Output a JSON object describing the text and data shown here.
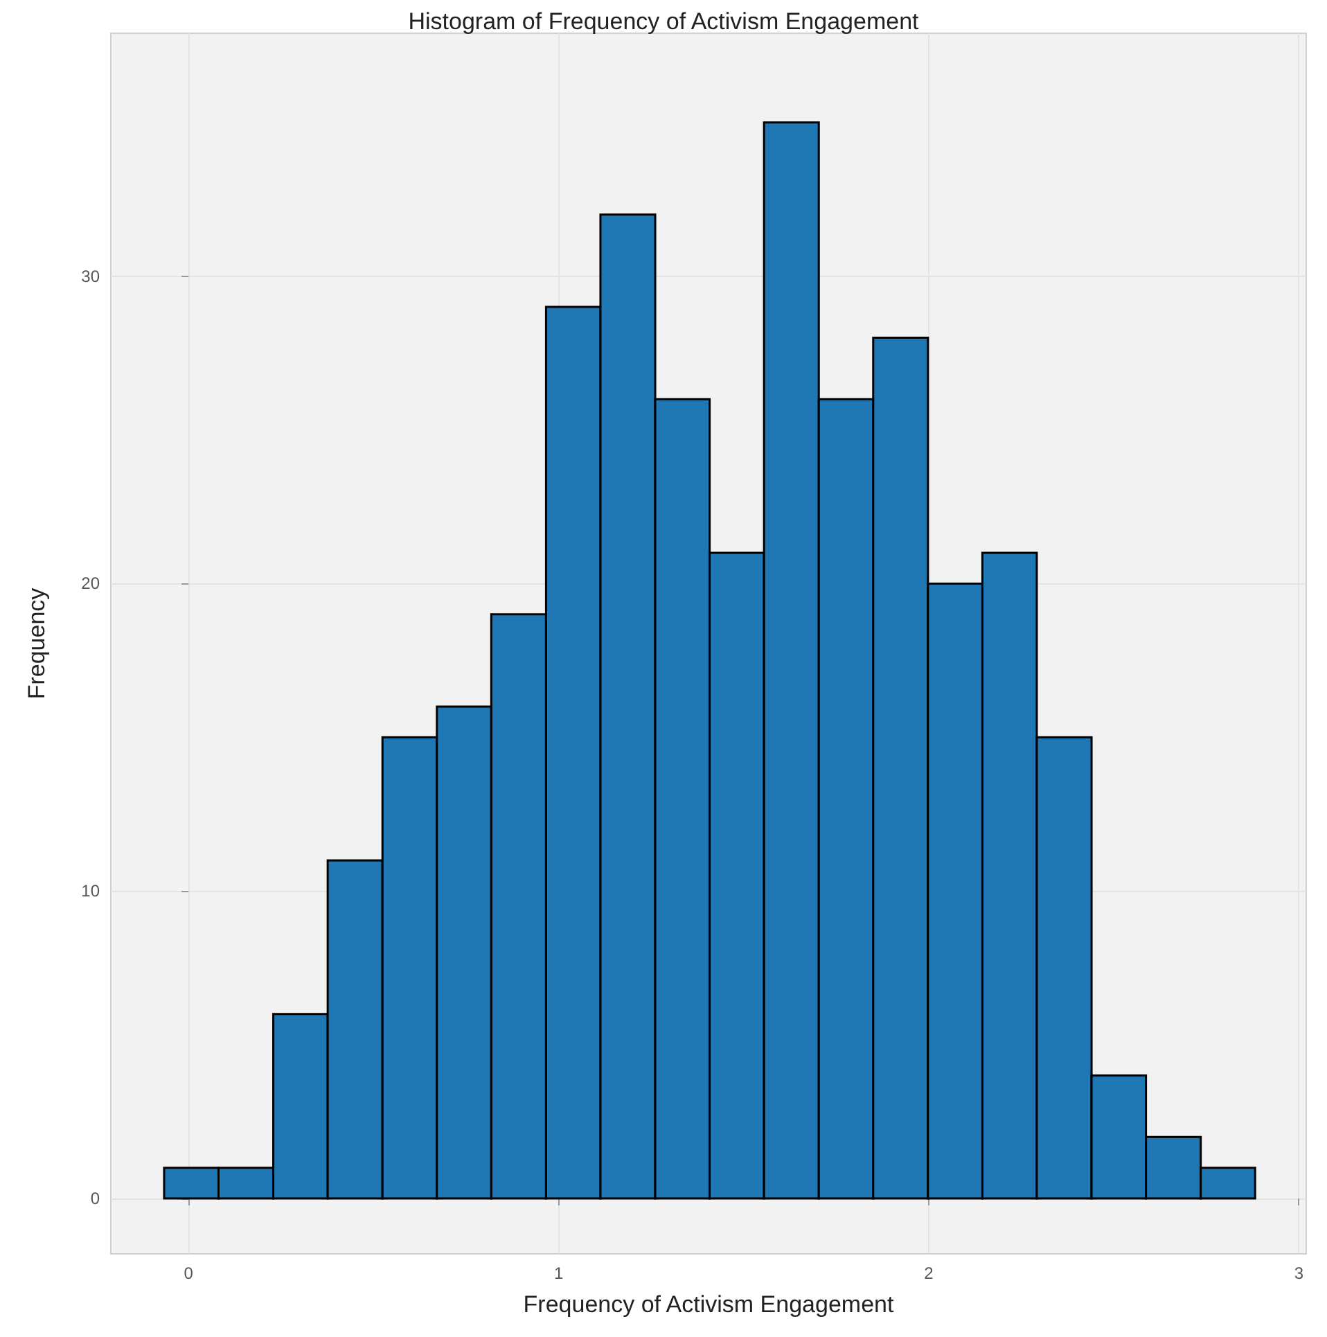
{
  "chart_data": {
    "type": "histogram",
    "title": "Histogram of Frequency of Activism Engagement",
    "xlabel": "Frequency of Activism Engagement",
    "ylabel": "Frequency",
    "bins": [
      -0.066,
      0.081,
      0.229,
      0.376,
      0.524,
      0.671,
      0.818,
      0.966,
      1.113,
      1.261,
      1.408,
      1.555,
      1.703,
      1.85,
      1.998,
      2.145,
      2.292,
      2.44,
      2.587,
      2.735,
      2.882
    ],
    "values": [
      1,
      1,
      6,
      11,
      15,
      16,
      19,
      29,
      32,
      26,
      21,
      35,
      26,
      28,
      20,
      21,
      15,
      4,
      2,
      1
    ],
    "color": "#1f77b4",
    "xlim": [
      -0.21,
      3.02
    ],
    "xticks": [
      0,
      1,
      2,
      3
    ],
    "ylim": [
      -1.8,
      37.9
    ],
    "yticks": [
      0,
      10,
      20,
      30
    ],
    "grid": true
  }
}
